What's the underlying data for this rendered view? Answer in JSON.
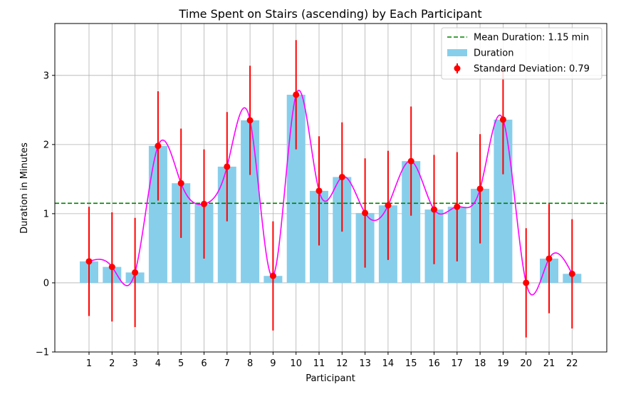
{
  "chart_data": {
    "type": "bar",
    "title": "Time Spent on Stairs (ascending) by Each Participant",
    "xlabel": "Participant",
    "ylabel": "Duration in Minutes",
    "categories": [
      "1",
      "2",
      "3",
      "4",
      "5",
      "6",
      "7",
      "8",
      "9",
      "10",
      "11",
      "12",
      "13",
      "14",
      "15",
      "16",
      "17",
      "18",
      "19",
      "20",
      "21",
      "22"
    ],
    "values": [
      0.31,
      0.23,
      0.15,
      1.98,
      1.44,
      1.14,
      1.68,
      2.35,
      0.1,
      2.72,
      1.33,
      1.53,
      1.01,
      1.12,
      1.76,
      1.06,
      1.1,
      1.36,
      2.36,
      0.0,
      0.35,
      0.13
    ],
    "error": 0.79,
    "mean": 1.15,
    "ylim": [
      -1,
      3.75
    ],
    "yticks": [
      "−1",
      "0",
      "1",
      "2",
      "3"
    ],
    "ytick_values": [
      -1,
      0,
      1,
      2,
      3
    ],
    "grid": true,
    "legend_position": "top-right",
    "colors": {
      "bar": "#87ceeb",
      "mean": "#008000",
      "points": "#ff0000",
      "curve": "#ff00ff"
    },
    "legend": [
      {
        "label": "Mean Duration: 1.15 min",
        "kind": "dashed-line",
        "color": "#008000"
      },
      {
        "label": "Duration",
        "kind": "patch",
        "color": "#87ceeb"
      },
      {
        "label": "Standard Deviation: 0.79",
        "kind": "errorbar",
        "color": "#ff0000"
      }
    ]
  }
}
